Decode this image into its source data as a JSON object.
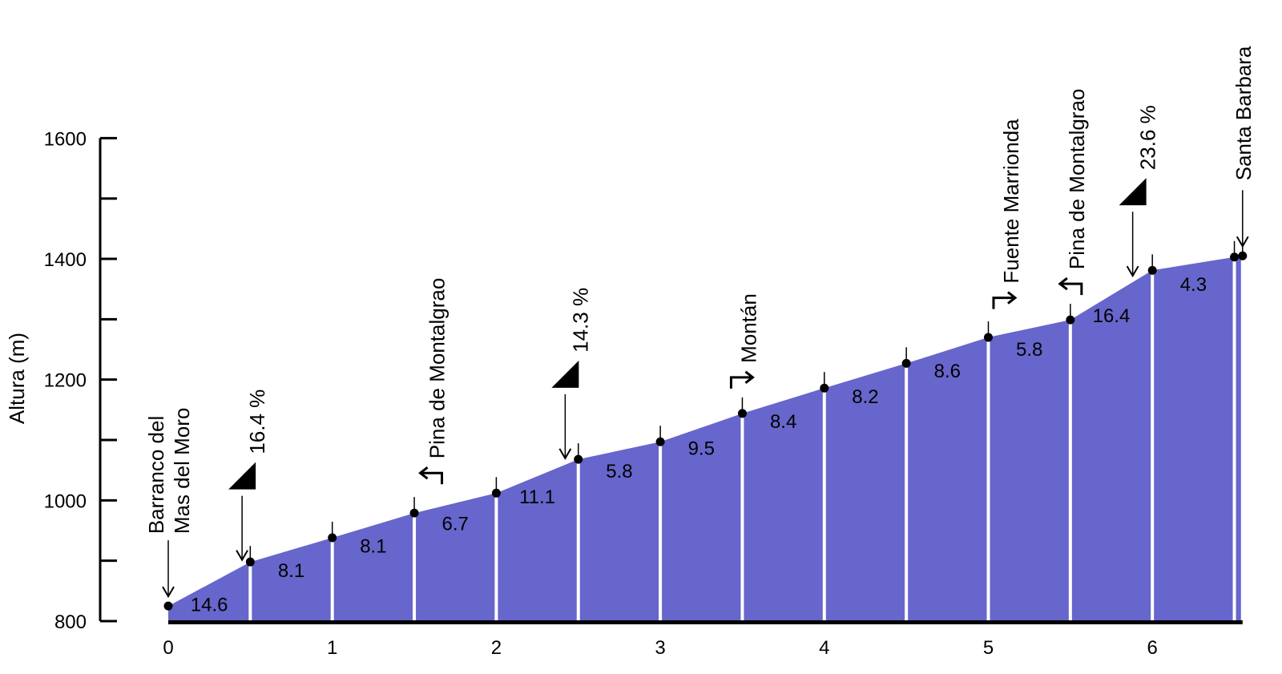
{
  "chart_data": {
    "type": "area",
    "ylabel": "Altura (m)",
    "xlabel": "",
    "xlim": [
      0,
      6.6
    ],
    "ylim": [
      800,
      1600
    ],
    "x_ticks": [
      0,
      1,
      2,
      3,
      4,
      5,
      6
    ],
    "y_ticks": [
      800,
      1000,
      1200,
      1400,
      1600
    ],
    "x_tick_labels": [
      "0",
      "1",
      "2",
      "3",
      "4",
      "5",
      "6"
    ],
    "y_tick_labels": [
      "800",
      "1000",
      "1200",
      "1400",
      "1600"
    ],
    "points": [
      {
        "x": 0.0,
        "y": 825
      },
      {
        "x": 0.5,
        "y": 898
      },
      {
        "x": 1.0,
        "y": 938
      },
      {
        "x": 1.5,
        "y": 979
      },
      {
        "x": 2.0,
        "y": 1012
      },
      {
        "x": 2.5,
        "y": 1068
      },
      {
        "x": 3.0,
        "y": 1097
      },
      {
        "x": 3.5,
        "y": 1144
      },
      {
        "x": 4.0,
        "y": 1186
      },
      {
        "x": 4.5,
        "y": 1227
      },
      {
        "x": 5.0,
        "y": 1270
      },
      {
        "x": 5.5,
        "y": 1299
      },
      {
        "x": 6.0,
        "y": 1381
      },
      {
        "x": 6.5,
        "y": 1403
      },
      {
        "x": 6.55,
        "y": 1405
      }
    ],
    "segment_gradients": [
      "14.6",
      "8.1",
      "8.1",
      "6.7",
      "11.1",
      "5.8",
      "9.5",
      "8.4",
      "8.2",
      "8.6",
      "5.8",
      "16.4",
      "4.3"
    ],
    "annotations": [
      {
        "id": "start",
        "x": 0.0,
        "text": "Barranco del\nMas del Moro",
        "kind": "label"
      },
      {
        "id": "max1",
        "x": 0.45,
        "text": "16.4 %",
        "kind": "max-gradient"
      },
      {
        "id": "turn1",
        "x": 1.6,
        "text": "Pina de Montalgrao",
        "kind": "turn-left"
      },
      {
        "id": "max2",
        "x": 2.42,
        "text": "14.3 %",
        "kind": "max-gradient"
      },
      {
        "id": "turn2",
        "x": 3.5,
        "text": "Montán",
        "kind": "turn-right"
      },
      {
        "id": "turn3",
        "x": 5.1,
        "text": "Fuente Marrionda",
        "kind": "turn-right"
      },
      {
        "id": "turn4",
        "x": 5.5,
        "text": "Pina de Montalgrao",
        "kind": "turn-left"
      },
      {
        "id": "max3",
        "x": 5.88,
        "text": "23.6 %",
        "kind": "max-gradient"
      },
      {
        "id": "end",
        "x": 6.55,
        "text": "Santa Barbara",
        "kind": "label"
      }
    ],
    "fill_color": "#6666cc",
    "baseline_color": "#000000",
    "grid": false,
    "legend": "none"
  }
}
